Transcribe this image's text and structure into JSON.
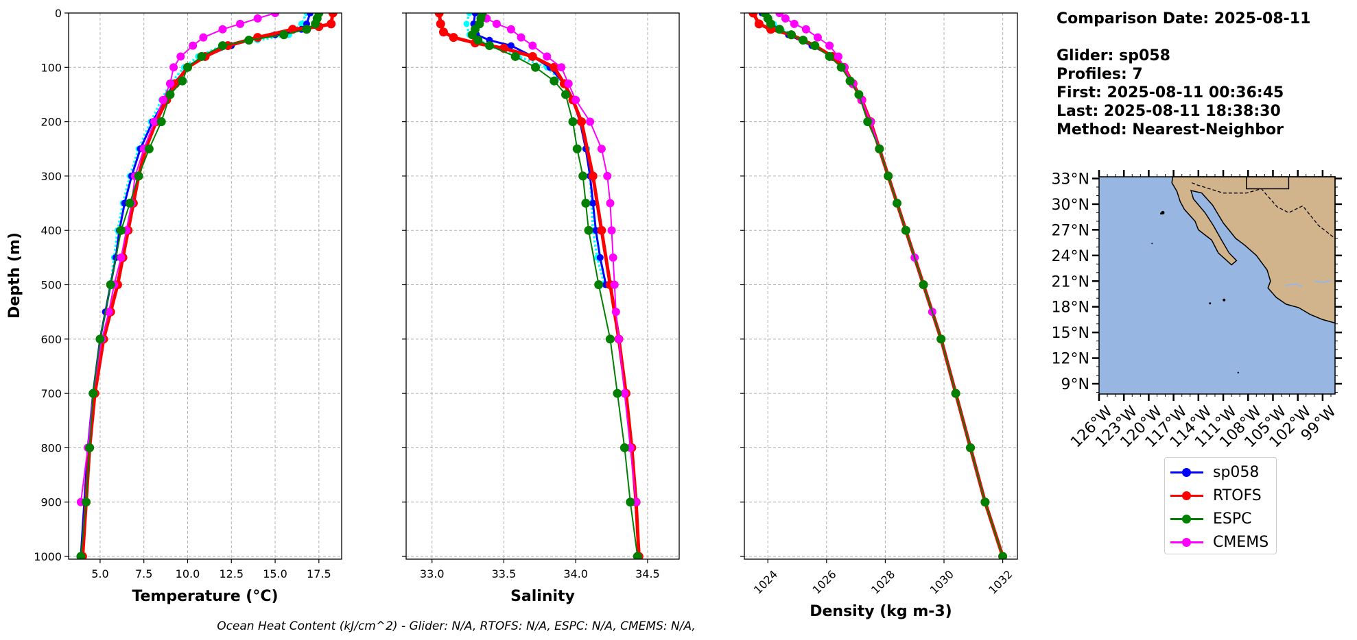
{
  "info": {
    "comparison_date": "Comparison Date: 2025-08-11",
    "glider": "Glider: sp058",
    "profiles": "Profiles: 7",
    "first": "First: 2025-08-11 00:36:45",
    "last": "Last: 2025-08-11 18:38:30",
    "method": "Method: Nearest-Neighbor"
  },
  "footer": "Ocean Heat Content (kJ/cm^2) - Glider: N/A,  RTOFS: N/A,  ESPC: N/A,  CMEMS: N/A,",
  "legend": [
    {
      "name": "sp058",
      "color": "#0000ff"
    },
    {
      "name": "RTOFS",
      "color": "#ff0000"
    },
    {
      "name": "ESPC",
      "color": "#008000"
    },
    {
      "name": "CMEMS",
      "color": "#ff00ff"
    }
  ],
  "colors": {
    "glider_profiles": "#00ffff",
    "ocean": "#98b6e2",
    "land": "#d2b48c"
  },
  "chart_data": [
    {
      "type": "line",
      "xlabel": "Temperature (°C)",
      "ylabel": "Depth (m)",
      "xlim": [
        3.2,
        18.8
      ],
      "ylim": [
        1005,
        0
      ],
      "y_inverted": true,
      "xticks": [
        "5.0",
        "7.5",
        "10.0",
        "12.5",
        "15.0",
        "17.5"
      ],
      "xtick_values": [
        5,
        7.5,
        10,
        12.5,
        15,
        17.5
      ],
      "yticks": [
        0,
        100,
        200,
        300,
        400,
        500,
        600,
        700,
        800,
        900,
        1000
      ],
      "grid": true,
      "series": [
        {
          "name": "sp058",
          "y": [
            0,
            20,
            30,
            40,
            50,
            60,
            80,
            100,
            130,
            160,
            200,
            250,
            300,
            350,
            400,
            450,
            500,
            550,
            600,
            700,
            800,
            900,
            1000
          ],
          "x": [
            17.0,
            16.8,
            16.5,
            15.0,
            13.5,
            12.5,
            11.0,
            10.0,
            9.2,
            8.7,
            8.0,
            7.3,
            6.8,
            6.4,
            6.1,
            5.9,
            5.6,
            5.3,
            5.0,
            4.6,
            4.3,
            4.1,
            3.9
          ]
        },
        {
          "name": "RTOFS",
          "y": [
            0,
            20,
            25,
            30,
            45,
            60,
            80,
            100,
            130,
            160,
            200,
            250,
            300,
            350,
            400,
            450,
            500,
            550,
            600,
            700,
            800,
            900,
            1000
          ],
          "x": [
            18.3,
            18.2,
            17.5,
            16.0,
            14.0,
            12.3,
            11.0,
            10.0,
            9.3,
            8.8,
            8.2,
            7.6,
            7.2,
            6.9,
            6.6,
            6.3,
            6.0,
            5.6,
            5.2,
            4.7,
            4.4,
            4.2,
            4.0
          ]
        },
        {
          "name": "ESPC",
          "y": [
            0,
            10,
            20,
            30,
            40,
            50,
            60,
            80,
            100,
            125,
            150,
            200,
            250,
            300,
            350,
            400,
            500,
            600,
            700,
            800,
            900,
            1000
          ],
          "x": [
            17.5,
            17.4,
            17.3,
            16.8,
            15.5,
            13.5,
            12.0,
            10.8,
            10.0,
            9.7,
            9.0,
            8.5,
            7.8,
            7.2,
            6.7,
            6.2,
            5.6,
            5.0,
            4.6,
            4.4,
            4.2,
            3.9
          ]
        },
        {
          "name": "CMEMS",
          "y": [
            0,
            10,
            20,
            30,
            45,
            60,
            80,
            100,
            130,
            160,
            200,
            250,
            300,
            350,
            400,
            450,
            500,
            550,
            600,
            700,
            800,
            900
          ],
          "x": [
            15.0,
            14.0,
            13.0,
            12.0,
            10.9,
            10.3,
            9.6,
            9.2,
            9.0,
            8.6,
            8.1,
            7.5,
            7.0,
            6.8,
            6.5,
            6.2,
            5.8,
            5.5,
            5.1,
            4.6,
            4.3,
            3.9
          ]
        },
        {
          "name": "glider-profiles",
          "y": [
            0,
            20,
            40,
            50,
            60,
            80,
            100,
            130,
            160,
            200,
            250,
            300,
            350,
            400,
            450,
            500
          ],
          "x": [
            16.8,
            16.5,
            15.8,
            14.0,
            12.0,
            10.6,
            9.8,
            9.0,
            8.5,
            7.9,
            7.2,
            6.7,
            6.3,
            6.0,
            5.8,
            5.6
          ]
        }
      ]
    },
    {
      "type": "line",
      "xlabel": "Salinity",
      "xlim": [
        32.82,
        34.72
      ],
      "ylim": [
        1005,
        0
      ],
      "y_inverted": true,
      "xticks": [
        "33.0",
        "33.5",
        "34.0",
        "34.5"
      ],
      "xtick_values": [
        33.0,
        33.5,
        34.0,
        34.5
      ],
      "yticks": [
        0,
        100,
        200,
        300,
        400,
        500,
        600,
        700,
        800,
        900,
        1000
      ],
      "grid": true,
      "series": [
        {
          "name": "sp058",
          "y": [
            0,
            20,
            40,
            50,
            60,
            80,
            100,
            130,
            160,
            200,
            250,
            300,
            350,
            400,
            450,
            500
          ],
          "x": [
            33.3,
            33.29,
            33.31,
            33.4,
            33.55,
            33.7,
            33.82,
            33.92,
            33.98,
            34.03,
            34.07,
            34.1,
            34.12,
            34.14,
            34.17,
            34.21
          ]
        },
        {
          "name": "RTOFS",
          "y": [
            0,
            20,
            35,
            45,
            55,
            65,
            80,
            100,
            130,
            160,
            200,
            300,
            400,
            500,
            600,
            700,
            800,
            900,
            1000
          ],
          "x": [
            33.05,
            33.06,
            33.08,
            33.15,
            33.3,
            33.5,
            33.7,
            33.85,
            33.92,
            33.98,
            34.04,
            34.12,
            34.18,
            34.24,
            34.3,
            34.35,
            34.39,
            34.42,
            34.44
          ]
        },
        {
          "name": "ESPC",
          "y": [
            0,
            10,
            20,
            30,
            40,
            50,
            60,
            80,
            100,
            125,
            150,
            200,
            250,
            300,
            350,
            400,
            500,
            600,
            700,
            800,
            900,
            1000
          ],
          "x": [
            33.35,
            33.34,
            33.33,
            33.3,
            33.28,
            33.32,
            33.4,
            33.58,
            33.72,
            33.85,
            33.93,
            33.98,
            34.01,
            34.05,
            34.07,
            34.09,
            34.16,
            34.24,
            34.29,
            34.34,
            34.38,
            34.43
          ]
        },
        {
          "name": "CMEMS",
          "y": [
            0,
            10,
            20,
            30,
            45,
            60,
            80,
            100,
            130,
            160,
            200,
            250,
            300,
            350,
            400,
            450,
            500,
            550,
            600,
            700,
            800,
            900
          ],
          "x": [
            33.35,
            33.38,
            33.45,
            33.55,
            33.62,
            33.7,
            33.8,
            33.9,
            33.95,
            34.0,
            34.1,
            34.18,
            34.22,
            34.24,
            34.25,
            34.26,
            34.27,
            34.28,
            34.3,
            34.34,
            34.38,
            34.42
          ]
        },
        {
          "name": "glider-profiles",
          "y": [
            0,
            20,
            40,
            60,
            80,
            100,
            130,
            160,
            200,
            250,
            300,
            350,
            400,
            450,
            500
          ],
          "x": [
            33.26,
            33.24,
            33.26,
            33.4,
            33.6,
            33.8,
            33.92,
            33.98,
            34.04,
            34.08,
            34.1,
            34.11,
            34.12,
            34.15,
            34.2
          ]
        }
      ]
    },
    {
      "type": "line",
      "xlabel": "Density (kg m-3)",
      "xlim": [
        1023.2,
        1032.5
      ],
      "ylim": [
        1005,
        0
      ],
      "y_inverted": true,
      "xticks": [
        "1024",
        "1026",
        "1028",
        "1030",
        "1032"
      ],
      "xtick_values": [
        1024,
        1026,
        1028,
        1030,
        1032
      ],
      "yticks": [
        0,
        100,
        200,
        300,
        400,
        500,
        600,
        700,
        800,
        900,
        1000
      ],
      "grid": true,
      "series": [
        {
          "name": "sp058",
          "y": [
            0,
            20,
            40,
            60,
            80,
            100,
            130,
            160,
            200,
            250,
            300,
            350,
            400,
            450,
            500
          ],
          "x": [
            1023.8,
            1024.1,
            1024.7,
            1025.5,
            1026.2,
            1026.6,
            1026.9,
            1027.2,
            1027.5,
            1027.8,
            1028.1,
            1028.4,
            1028.7,
            1029.0,
            1029.3
          ]
        },
        {
          "name": "RTOFS",
          "y": [
            0,
            20,
            30,
            40,
            60,
            80,
            100,
            130,
            160,
            200,
            250,
            300,
            400,
            500,
            600,
            700,
            800,
            900,
            1000
          ],
          "x": [
            1023.5,
            1023.7,
            1024.1,
            1024.8,
            1025.6,
            1026.2,
            1026.6,
            1026.9,
            1027.2,
            1027.5,
            1027.8,
            1028.1,
            1028.7,
            1029.3,
            1029.9,
            1030.4,
            1030.9,
            1031.4,
            1032.0
          ]
        },
        {
          "name": "ESPC",
          "y": [
            0,
            10,
            20,
            30,
            40,
            50,
            60,
            80,
            100,
            125,
            150,
            200,
            250,
            300,
            350,
            400,
            500,
            600,
            700,
            800,
            900,
            1000
          ],
          "x": [
            1023.9,
            1024.0,
            1024.1,
            1024.4,
            1024.8,
            1025.2,
            1025.6,
            1026.1,
            1026.5,
            1026.8,
            1027.1,
            1027.4,
            1027.8,
            1028.1,
            1028.4,
            1028.7,
            1029.3,
            1029.9,
            1030.4,
            1030.9,
            1031.4,
            1032.0
          ]
        },
        {
          "name": "CMEMS",
          "y": [
            0,
            10,
            20,
            30,
            45,
            60,
            80,
            100,
            130,
            160,
            200,
            250,
            300,
            350,
            400,
            450,
            500,
            550,
            600,
            700,
            800,
            900
          ],
          "x": [
            1024.4,
            1024.6,
            1024.9,
            1025.3,
            1025.7,
            1026.1,
            1026.4,
            1026.6,
            1026.9,
            1027.2,
            1027.5,
            1027.8,
            1028.1,
            1028.4,
            1028.7,
            1029.0,
            1029.3,
            1029.6,
            1029.9,
            1030.4,
            1030.9,
            1031.4
          ]
        },
        {
          "name": "glider-profiles",
          "y": [
            0,
            20,
            40,
            60,
            80,
            100,
            130,
            160,
            200,
            250,
            300,
            350,
            400,
            450,
            500
          ],
          "x": [
            1023.9,
            1024.2,
            1024.8,
            1025.6,
            1026.2,
            1026.6,
            1026.9,
            1027.2,
            1027.5,
            1027.8,
            1028.1,
            1028.4,
            1028.7,
            1029.0,
            1029.3
          ]
        }
      ]
    },
    {
      "type": "map",
      "lat_ticks": [
        "33°N",
        "30°N",
        "27°N",
        "24°N",
        "21°N",
        "18°N",
        "15°N",
        "12°N",
        "9°N"
      ],
      "lat_values": [
        33,
        30,
        27,
        24,
        21,
        18,
        15,
        12,
        9
      ],
      "lon_ticks": [
        "126°W",
        "123°W",
        "120°W",
        "117°W",
        "114°W",
        "111°W",
        "108°W",
        "105°W",
        "102°W",
        "99°W"
      ],
      "lon_values": [
        -126,
        -123,
        -120,
        -117,
        -114,
        -111,
        -108,
        -105,
        -102,
        -99
      ],
      "lon_range": [
        -126.0,
        -97.5
      ],
      "lat_range": [
        7.8,
        33.2
      ]
    }
  ]
}
